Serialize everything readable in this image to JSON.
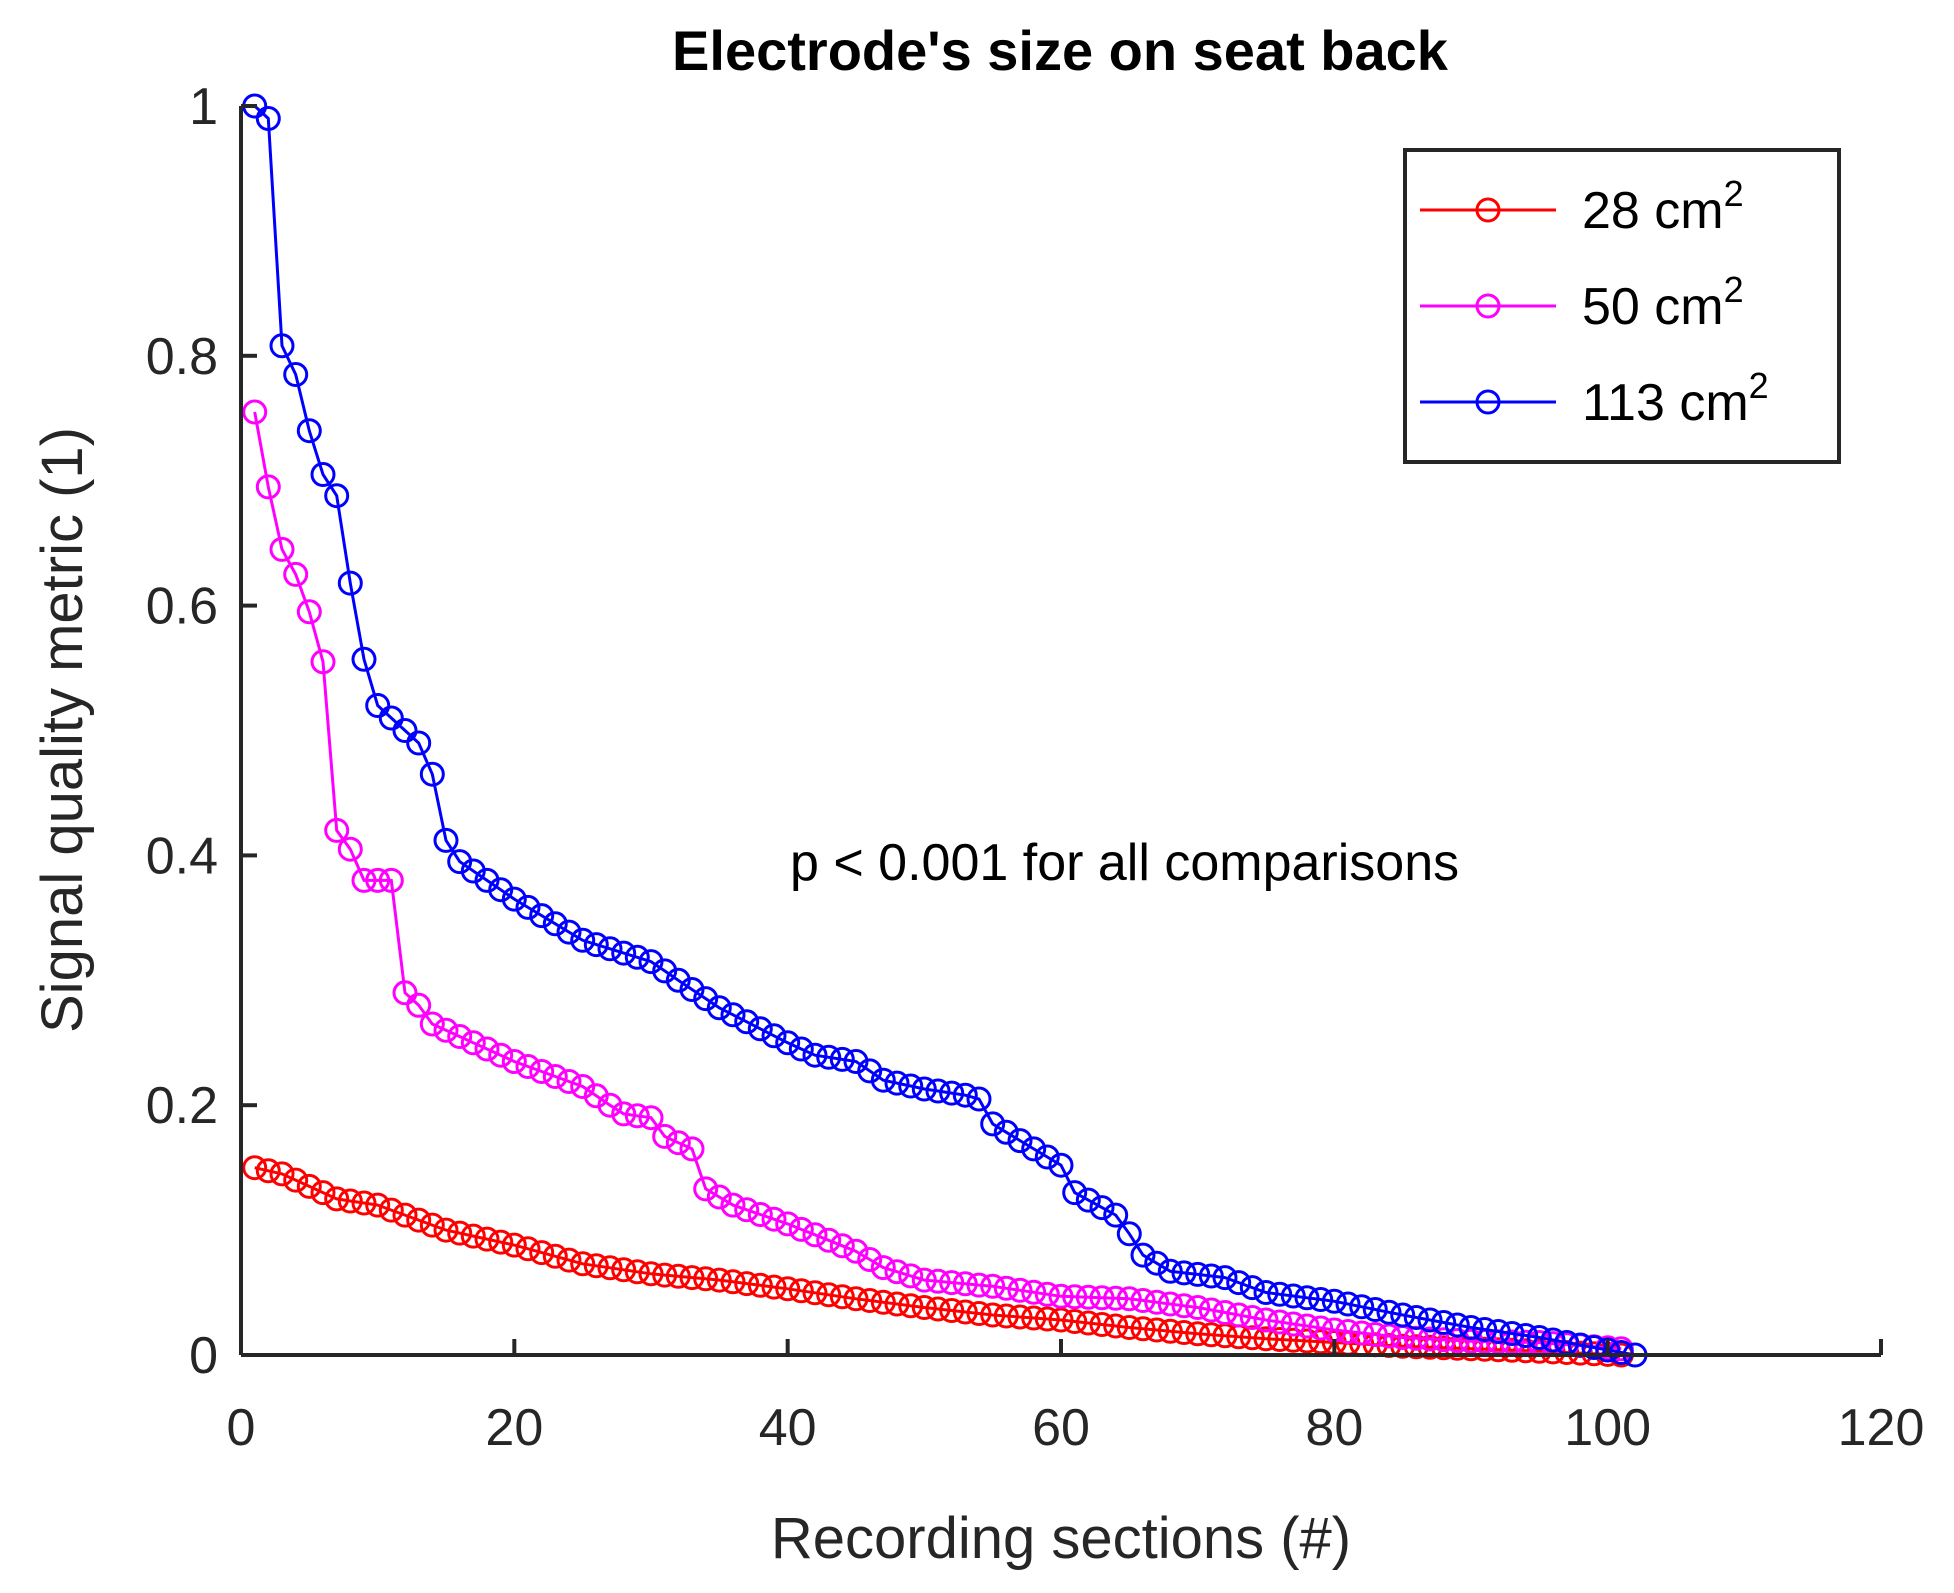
{
  "chart_data": {
    "type": "line",
    "title": "Electrode's size on seat back",
    "xlabel": "Recording sections (#)",
    "ylabel": "Signal quality metric (1)",
    "xlim": [
      0,
      120
    ],
    "ylim": [
      0,
      1
    ],
    "xticks": [
      0,
      20,
      40,
      60,
      80,
      100,
      120
    ],
    "yticks": [
      0,
      0.2,
      0.4,
      0.6,
      0.8,
      1
    ],
    "xtick_labels": [
      "0",
      "20",
      "40",
      "60",
      "80",
      "100",
      "120"
    ],
    "ytick_labels": [
      "0",
      "0.2",
      "0.4",
      "0.6",
      "0.8",
      "1"
    ],
    "grid": false,
    "legend_position": "top-right",
    "marker": "circle",
    "annotation": "p < 0.001 for all comparisons",
    "series": [
      {
        "name": "28 cm",
        "superscript": "2",
        "color": "#ff0000",
        "n_points": 101,
        "keypoints": [
          [
            1,
            0.15
          ],
          [
            3,
            0.145
          ],
          [
            5,
            0.135
          ],
          [
            7,
            0.125
          ],
          [
            10,
            0.12
          ],
          [
            15,
            0.1
          ],
          [
            20,
            0.088
          ],
          [
            25,
            0.073
          ],
          [
            30,
            0.065
          ],
          [
            35,
            0.06
          ],
          [
            40,
            0.053
          ],
          [
            45,
            0.045
          ],
          [
            50,
            0.038
          ],
          [
            55,
            0.032
          ],
          [
            60,
            0.028
          ],
          [
            65,
            0.022
          ],
          [
            70,
            0.017
          ],
          [
            75,
            0.013
          ],
          [
            80,
            0.01
          ],
          [
            85,
            0.007
          ],
          [
            90,
            0.005
          ],
          [
            95,
            0.003
          ],
          [
            101,
            0.0
          ]
        ]
      },
      {
        "name": "50 cm",
        "superscript": "2",
        "color": "#ff00ff",
        "n_points": 101,
        "keypoints": [
          [
            1,
            0.755
          ],
          [
            2,
            0.695
          ],
          [
            3,
            0.645
          ],
          [
            4,
            0.625
          ],
          [
            5,
            0.595
          ],
          [
            6,
            0.555
          ],
          [
            7,
            0.42
          ],
          [
            8,
            0.405
          ],
          [
            9,
            0.38
          ],
          [
            10,
            0.38
          ],
          [
            11,
            0.38
          ],
          [
            12,
            0.29
          ],
          [
            13,
            0.28
          ],
          [
            14,
            0.265
          ],
          [
            15,
            0.26
          ],
          [
            20,
            0.235
          ],
          [
            25,
            0.215
          ],
          [
            27,
            0.2
          ],
          [
            28,
            0.193
          ],
          [
            30,
            0.19
          ],
          [
            31,
            0.175
          ],
          [
            33,
            0.165
          ],
          [
            34,
            0.133
          ],
          [
            36,
            0.12
          ],
          [
            40,
            0.105
          ],
          [
            45,
            0.083
          ],
          [
            47,
            0.07
          ],
          [
            50,
            0.06
          ],
          [
            55,
            0.055
          ],
          [
            60,
            0.047
          ],
          [
            65,
            0.045
          ],
          [
            70,
            0.038
          ],
          [
            75,
            0.028
          ],
          [
            80,
            0.02
          ],
          [
            85,
            0.014
          ],
          [
            90,
            0.011
          ],
          [
            95,
            0.01
          ],
          [
            101,
            0.005
          ]
        ]
      },
      {
        "name": "113 cm",
        "superscript": "2",
        "color": "#0000ff",
        "n_points": 102,
        "keypoints": [
          [
            1,
            1.0
          ],
          [
            2,
            0.99
          ],
          [
            3,
            0.808
          ],
          [
            4,
            0.785
          ],
          [
            5,
            0.74
          ],
          [
            6,
            0.705
          ],
          [
            7,
            0.688
          ],
          [
            8,
            0.618
          ],
          [
            9,
            0.557
          ],
          [
            10,
            0.52
          ],
          [
            11,
            0.51
          ],
          [
            12,
            0.5
          ],
          [
            13,
            0.49
          ],
          [
            14,
            0.465
          ],
          [
            15,
            0.412
          ],
          [
            16,
            0.395
          ],
          [
            20,
            0.365
          ],
          [
            25,
            0.332
          ],
          [
            30,
            0.315
          ],
          [
            32,
            0.3
          ],
          [
            35,
            0.278
          ],
          [
            40,
            0.25
          ],
          [
            42,
            0.24
          ],
          [
            45,
            0.235
          ],
          [
            47,
            0.22
          ],
          [
            50,
            0.213
          ],
          [
            53,
            0.208
          ],
          [
            54,
            0.205
          ],
          [
            55,
            0.185
          ],
          [
            58,
            0.165
          ],
          [
            60,
            0.152
          ],
          [
            61,
            0.13
          ],
          [
            64,
            0.112
          ],
          [
            65,
            0.097
          ],
          [
            66,
            0.08
          ],
          [
            68,
            0.067
          ],
          [
            72,
            0.062
          ],
          [
            75,
            0.05
          ],
          [
            80,
            0.043
          ],
          [
            85,
            0.032
          ],
          [
            90,
            0.022
          ],
          [
            95,
            0.014
          ],
          [
            99,
            0.006
          ],
          [
            102,
            0.0
          ]
        ]
      }
    ]
  }
}
